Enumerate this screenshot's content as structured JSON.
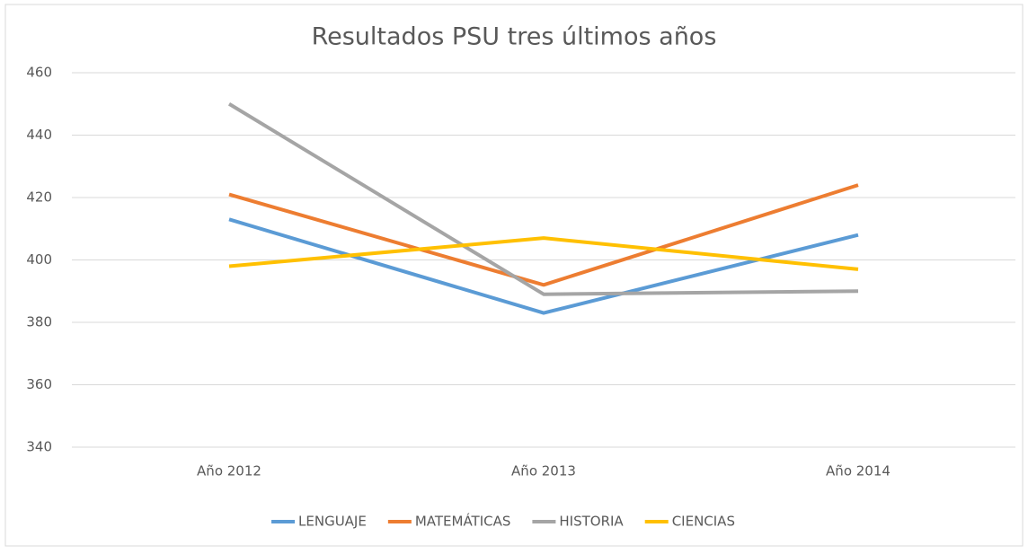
{
  "chart_data": {
    "type": "line",
    "title": "Resultados PSU tres últimos años",
    "categories": [
      "Año 2012",
      "Año 2013",
      "Año 2014"
    ],
    "series": [
      {
        "name": "LENGUAJE",
        "color": "#5b9bd5",
        "values": [
          413,
          383,
          408
        ]
      },
      {
        "name": "MATEMÁTICAS",
        "color": "#ed7d31",
        "values": [
          421,
          392,
          424
        ]
      },
      {
        "name": "HISTORIA",
        "color": "#a5a5a5",
        "values": [
          450,
          389,
          390
        ]
      },
      {
        "name": "CIENCIAS",
        "color": "#ffc000",
        "values": [
          398,
          407,
          397
        ]
      }
    ],
    "ylim": [
      340,
      460
    ],
    "yticks": [
      340,
      360,
      380,
      400,
      420,
      440,
      460
    ],
    "grid": true,
    "legend": "bottom"
  }
}
